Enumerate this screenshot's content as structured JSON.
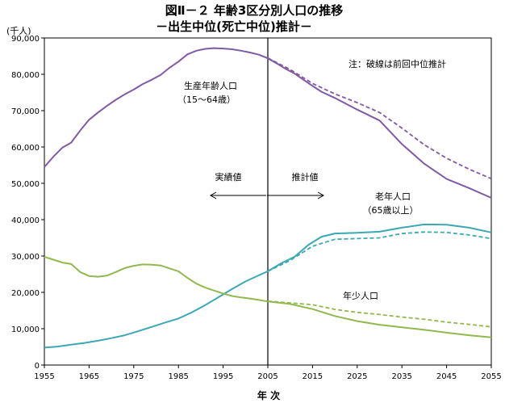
{
  "chart_data": {
    "type": "line",
    "title": "図Ⅱ－２ 年齢3区分別人口の推移",
    "subtitle": "－出生中位(死亡中位)推計－",
    "ylabel": "(千人)",
    "xlabel": "年 次",
    "ylim": [
      0,
      90000
    ],
    "xlim": [
      1955,
      2055
    ],
    "yticks": [
      "0",
      "10,000",
      "20,000",
      "30,000",
      "40,000",
      "50,000",
      "60,000",
      "70,000",
      "80,000",
      "90,000"
    ],
    "xticks": [
      "1955",
      "1965",
      "1975",
      "1985",
      "1995",
      "2005",
      "2015",
      "2025",
      "2035",
      "2045",
      "2055"
    ],
    "divider_year": 2005,
    "note": "注：破線は前回中位推計",
    "annotations": {
      "actual": "実績値",
      "projected": "推計値"
    },
    "series": [
      {
        "name": "生産年齢人口",
        "sublabel": "（15～64歳）",
        "color": "#7f5ba6",
        "x": [
          1955,
          1957,
          1959,
          1961,
          1963,
          1965,
          1967,
          1969,
          1971,
          1973,
          1975,
          1977,
          1979,
          1981,
          1983,
          1985,
          1987,
          1989,
          1991,
          1993,
          1995,
          1997,
          1999,
          2001,
          2003,
          2005,
          2007,
          2009,
          2011,
          2013,
          2015,
          2017,
          2020,
          2025,
          2030,
          2035,
          2040,
          2045,
          2050,
          2055
        ],
        "values": [
          54500,
          57300,
          59800,
          61200,
          64500,
          67500,
          69500,
          71300,
          73000,
          74500,
          75800,
          77300,
          78500,
          79800,
          81800,
          83500,
          85500,
          86500,
          87000,
          87200,
          87100,
          86900,
          86500,
          86000,
          85400,
          84400,
          83000,
          81500,
          80200,
          78500,
          76800,
          75200,
          73500,
          70300,
          67300,
          60800,
          55400,
          51200,
          48700,
          46000
        ]
      },
      {
        "name": "生産年齢人口 前回推計",
        "color": "#7f5ba6",
        "dashed": true,
        "x": [
          2005,
          2010,
          2015,
          2020,
          2025,
          2030,
          2035,
          2040,
          2045,
          2050,
          2055
        ],
        "values": [
          84500,
          81300,
          77500,
          74600,
          72200,
          69500,
          65200,
          60600,
          56900,
          53900,
          51300
        ]
      },
      {
        "name": "老年人口",
        "sublabel": "（65歳以上）",
        "color": "#3aa9b3",
        "x": [
          1955,
          1958,
          1961,
          1964,
          1967,
          1970,
          1973,
          1976,
          1979,
          1982,
          1985,
          1988,
          1991,
          1994,
          1997,
          2000,
          2003,
          2005,
          2008,
          2011,
          2014,
          2017,
          2020,
          2025,
          2030,
          2035,
          2040,
          2045,
          2050,
          2055
        ],
        "values": [
          4800,
          5100,
          5600,
          6100,
          6700,
          7400,
          8200,
          9300,
          10500,
          11700,
          12800,
          14500,
          16500,
          18700,
          20900,
          23000,
          24700,
          25800,
          28000,
          29800,
          33000,
          35300,
          36200,
          36400,
          36700,
          37800,
          38700,
          38600,
          37800,
          36500
        ]
      },
      {
        "name": "老年人口 前回推計",
        "color": "#3aa9b3",
        "dashed": true,
        "x": [
          2005,
          2010,
          2015,
          2020,
          2025,
          2030,
          2035,
          2040,
          2045,
          2050,
          2055
        ],
        "values": [
          25800,
          28800,
          32700,
          34600,
          34800,
          35000,
          36200,
          36600,
          36500,
          35800,
          34800
        ]
      },
      {
        "name": "年少人口",
        "color": "#92b84f",
        "x": [
          1955,
          1957,
          1959,
          1961,
          1963,
          1965,
          1967,
          1969,
          1971,
          1973,
          1975,
          1977,
          1979,
          1981,
          1983,
          1985,
          1987,
          1989,
          1991,
          1993,
          1995,
          1997,
          1999,
          2001,
          2003,
          2005,
          2010,
          2015,
          2020,
          2025,
          2030,
          2035,
          2040,
          2045,
          2050,
          2055
        ],
        "values": [
          29800,
          29000,
          28200,
          27800,
          25600,
          24500,
          24300,
          24600,
          25600,
          26700,
          27300,
          27700,
          27600,
          27400,
          26600,
          25800,
          24000,
          22400,
          21300,
          20500,
          19700,
          19000,
          18600,
          18300,
          17900,
          17500,
          16800,
          15400,
          13500,
          12100,
          11100,
          10400,
          9700,
          8900,
          8200,
          7600
        ]
      },
      {
        "name": "年少人口 前回推計",
        "color": "#92b84f",
        "dashed": true,
        "x": [
          2005,
          2010,
          2015,
          2020,
          2025,
          2030,
          2035,
          2040,
          2045,
          2050,
          2055
        ],
        "values": [
          17600,
          17100,
          16600,
          15300,
          14500,
          13900,
          13200,
          12600,
          11800,
          11200,
          10500
        ]
      }
    ],
    "series_labels": [
      {
        "name": "生産年齢人口",
        "sub": "（15～64歳）"
      },
      {
        "name": "老年人口",
        "sub": "（65歳以上）"
      },
      {
        "name": "年少人口",
        "sub": ""
      }
    ]
  }
}
